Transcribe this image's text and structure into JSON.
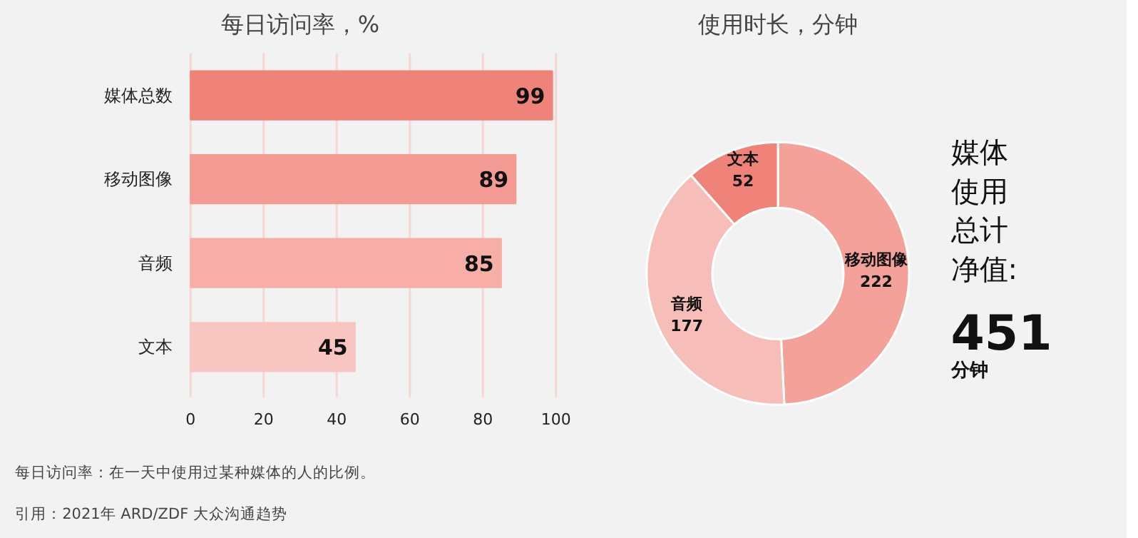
{
  "chart_data": [
    {
      "type": "bar",
      "title": "每日访问率，%",
      "orientation": "horizontal",
      "categories": [
        "媒体总数",
        "移动图像",
        "音频",
        "文本"
      ],
      "values": [
        99,
        89,
        85,
        45
      ],
      "colors": [
        "#f08379",
        "#f39b93",
        "#f6aea7",
        "#f8c5c1"
      ],
      "xlim": [
        0,
        100
      ],
      "xticks": [
        0,
        20,
        40,
        60,
        80,
        100
      ],
      "grid": "x",
      "data_labels": true,
      "annotations": [
        "每日访问率：在一天中使用过某种媒体的人的比例。",
        "引用：2021年 ARD/ZDF 大众沟通趋势"
      ]
    },
    {
      "type": "donut",
      "title": "使用时长，分钟",
      "categories": [
        "移动图像",
        "音频",
        "文本"
      ],
      "values": [
        222,
        177,
        52
      ],
      "colors": [
        "#f4a19a",
        "#f7bdb9",
        "#f08379"
      ],
      "data_labels": true
    },
    {
      "type": "other",
      "annotations": [
        "媒体",
        "使用",
        "总计",
        "净值:",
        "451",
        "分钟"
      ]
    }
  ]
}
